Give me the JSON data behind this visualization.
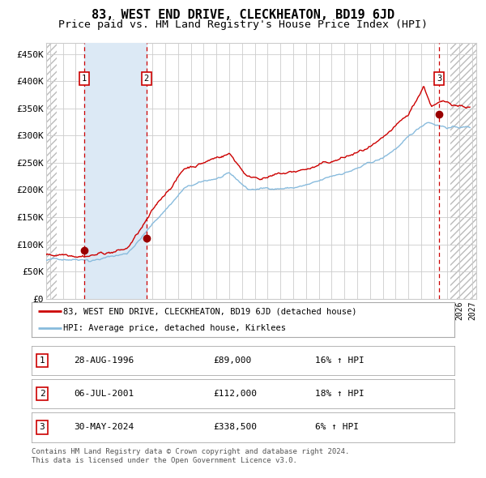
{
  "title": "83, WEST END DRIVE, CLECKHEATON, BD19 6JD",
  "subtitle": "Price paid vs. HM Land Registry's House Price Index (HPI)",
  "title_fontsize": 11,
  "subtitle_fontsize": 9.5,
  "ylabel_ticks": [
    "£0",
    "£50K",
    "£100K",
    "£150K",
    "£200K",
    "£250K",
    "£300K",
    "£350K",
    "£400K",
    "£450K"
  ],
  "ytick_values": [
    0,
    50000,
    100000,
    150000,
    200000,
    250000,
    300000,
    350000,
    400000,
    450000
  ],
  "ylim": [
    0,
    470000
  ],
  "xlim_start": 1993.7,
  "xlim_end": 2027.3,
  "grid_color": "#cccccc",
  "bg_color": "#ffffff",
  "plot_bg_color": "#ffffff",
  "shaded_region_color": "#dce9f5",
  "shade_x_start": 1996.65,
  "shade_x_end": 2001.52,
  "red_line_color": "#cc0000",
  "blue_line_color": "#88bbdd",
  "red_dot_color": "#990000",
  "dashed_line_color": "#cc0000",
  "hatch_left_end": 1994.5,
  "hatch_right_start": 2025.3,
  "legend_line1": "83, WEST END DRIVE, CLECKHEATON, BD19 6JD (detached house)",
  "legend_line2": "HPI: Average price, detached house, Kirklees",
  "sale1_date": 1996.66,
  "sale1_price": 89000,
  "sale2_date": 2001.52,
  "sale2_price": 112000,
  "sale3_date": 2024.41,
  "sale3_price": 338500,
  "table_rows": [
    [
      "1",
      "28-AUG-1996",
      "£89,000",
      "16% ↑ HPI"
    ],
    [
      "2",
      "06-JUL-2001",
      "£112,000",
      "18% ↑ HPI"
    ],
    [
      "3",
      "30-MAY-2024",
      "£338,500",
      "6% ↑ HPI"
    ]
  ],
  "footer": "Contains HM Land Registry data © Crown copyright and database right 2024.\nThis data is licensed under the Open Government Licence v3.0."
}
